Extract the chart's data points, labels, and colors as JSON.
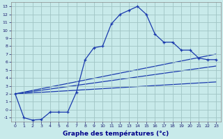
{
  "xlabel": "Graphe des températures (°c)",
  "bg_color": "#c8eaea",
  "grid_color": "#a0c4c4",
  "line_color": "#1a3aad",
  "xlim": [
    -0.5,
    23.5
  ],
  "ylim": [
    -1.5,
    13.5
  ],
  "xticks": [
    0,
    1,
    2,
    3,
    4,
    5,
    6,
    7,
    8,
    9,
    10,
    11,
    12,
    13,
    14,
    15,
    16,
    17,
    18,
    19,
    20,
    21,
    22,
    23
  ],
  "yticks": [
    -1,
    0,
    1,
    2,
    3,
    4,
    5,
    6,
    7,
    8,
    9,
    10,
    11,
    12,
    13
  ],
  "curve1_x": [
    0,
    1,
    2,
    3,
    4,
    5,
    6,
    7,
    8,
    9,
    10,
    11,
    12,
    13,
    14,
    15,
    16,
    17,
    18,
    19,
    20,
    21,
    22,
    23
  ],
  "curve1_y": [
    2,
    -1,
    -1.3,
    -1.2,
    -0.3,
    -0.3,
    -0.3,
    2.2,
    6.3,
    7.8,
    8.0,
    10.8,
    12.0,
    12.5,
    13.0,
    12.0,
    9.5,
    8.5,
    8.5,
    7.5,
    7.5,
    6.5,
    6.3,
    6.3
  ],
  "curve2_x": [
    0,
    23
  ],
  "curve2_y": [
    2.0,
    7.0
  ],
  "curve3_x": [
    0,
    23
  ],
  "curve3_y": [
    2.0,
    5.5
  ],
  "curve4_x": [
    0,
    23
  ],
  "curve4_y": [
    2.0,
    3.5
  ]
}
